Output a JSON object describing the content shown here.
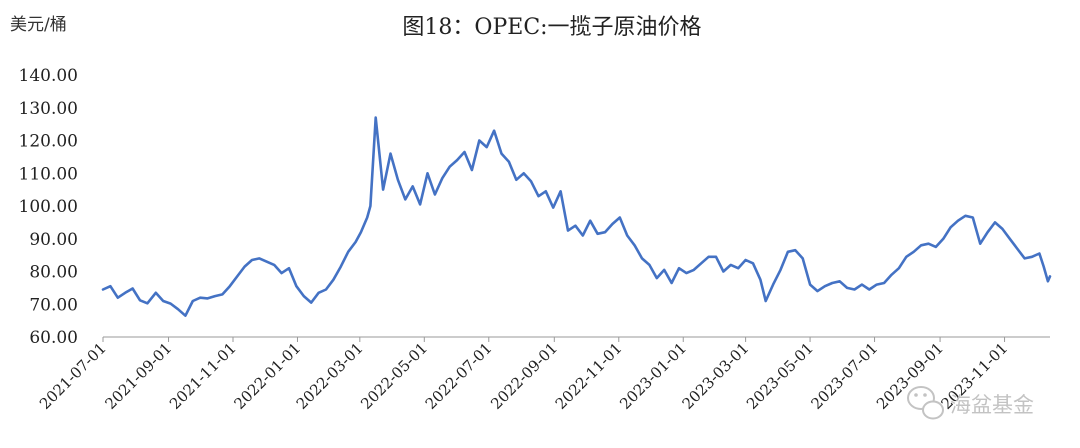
{
  "chart_data": {
    "type": "line",
    "title": "图18：OPEC:一揽子原油价格",
    "ylabel": "美元/桶",
    "xlabel": "",
    "ylim": [
      60,
      140
    ],
    "yticks": [
      "140.00",
      "130.00",
      "120.00",
      "110.00",
      "100.00",
      "90.00",
      "80.00",
      "70.00",
      "60.00"
    ],
    "xticks": [
      "2021-07-01",
      "2021-09-01",
      "2021-11-01",
      "2022-01-01",
      "2022-03-01",
      "2022-05-01",
      "2022-07-01",
      "2022-09-01",
      "2022-11-01",
      "2023-01-01",
      "2023-03-01",
      "2023-05-01",
      "2023-07-01",
      "2023-09-01",
      "2023-11-01"
    ],
    "grid": false,
    "legend": "none",
    "color": "#4472c4",
    "series": [
      {
        "x": [
          "2021-07-01",
          "2021-07-08",
          "2021-07-15",
          "2021-07-22",
          "2021-07-29",
          "2021-08-05",
          "2021-08-12",
          "2021-08-20",
          "2021-08-27",
          "2021-09-03",
          "2021-09-10",
          "2021-09-17",
          "2021-09-24",
          "2021-10-01",
          "2021-10-08",
          "2021-10-15",
          "2021-10-22",
          "2021-10-29",
          "2021-11-05",
          "2021-11-12",
          "2021-11-19",
          "2021-11-26",
          "2021-12-03",
          "2021-12-10",
          "2021-12-17",
          "2021-12-24",
          "2021-12-31",
          "2022-01-07",
          "2022-01-14",
          "2022-01-21",
          "2022-01-28",
          "2022-02-04",
          "2022-02-11",
          "2022-02-18",
          "2022-02-25",
          "2022-03-02",
          "2022-03-08",
          "2022-03-11",
          "2022-03-16",
          "2022-03-23",
          "2022-03-30",
          "2022-04-06",
          "2022-04-13",
          "2022-04-20",
          "2022-04-27",
          "2022-05-04",
          "2022-05-11",
          "2022-05-18",
          "2022-05-25",
          "2022-06-01",
          "2022-06-08",
          "2022-06-15",
          "2022-06-22",
          "2022-06-29",
          "2022-07-06",
          "2022-07-13",
          "2022-07-20",
          "2022-07-27",
          "2022-08-03",
          "2022-08-10",
          "2022-08-17",
          "2022-08-24",
          "2022-08-31",
          "2022-09-07",
          "2022-09-14",
          "2022-09-21",
          "2022-09-28",
          "2022-10-05",
          "2022-10-12",
          "2022-10-19",
          "2022-10-26",
          "2022-11-02",
          "2022-11-09",
          "2022-11-16",
          "2022-11-23",
          "2022-11-30",
          "2022-12-07",
          "2022-12-14",
          "2022-12-21",
          "2022-12-28",
          "2023-01-04",
          "2023-01-11",
          "2023-01-18",
          "2023-01-25",
          "2023-02-01",
          "2023-02-08",
          "2023-02-15",
          "2023-02-22",
          "2023-03-01",
          "2023-03-08",
          "2023-03-15",
          "2023-03-20",
          "2023-03-27",
          "2023-04-03",
          "2023-04-10",
          "2023-04-17",
          "2023-04-24",
          "2023-05-01",
          "2023-05-08",
          "2023-05-15",
          "2023-05-22",
          "2023-05-29",
          "2023-06-05",
          "2023-06-12",
          "2023-06-19",
          "2023-06-26",
          "2023-07-03",
          "2023-07-10",
          "2023-07-17",
          "2023-07-24",
          "2023-07-31",
          "2023-08-07",
          "2023-08-14",
          "2023-08-21",
          "2023-08-28",
          "2023-09-04",
          "2023-09-11",
          "2023-09-18",
          "2023-09-25",
          "2023-10-02",
          "2023-10-09",
          "2023-10-16",
          "2023-10-23",
          "2023-10-30",
          "2023-11-06",
          "2023-11-13",
          "2023-11-20",
          "2023-11-27",
          "2023-12-04",
          "2023-12-08",
          "2023-12-12",
          "2023-12-14"
        ],
        "values": [
          74.5,
          75.5,
          72.0,
          73.5,
          74.8,
          71.2,
          70.3,
          73.5,
          71.0,
          70.2,
          68.5,
          66.5,
          71.0,
          72.0,
          71.8,
          72.5,
          73.0,
          75.5,
          78.5,
          81.5,
          83.5,
          84.0,
          83.0,
          82.0,
          79.5,
          81.0,
          75.5,
          72.5,
          70.5,
          73.5,
          74.5,
          77.5,
          81.5,
          86.0,
          89.0,
          92.0,
          96.5,
          100.0,
          127.0,
          105.0,
          116.0,
          108.0,
          102.0,
          106.0,
          100.5,
          110.0,
          103.5,
          108.5,
          112.0,
          114.0,
          116.5,
          111.0,
          120.0,
          118.0,
          123.0,
          116.0,
          113.5,
          108.0,
          110.0,
          107.5,
          103.0,
          104.5,
          99.5,
          104.5,
          92.5,
          94.0,
          91.0,
          95.5,
          91.5,
          92.0,
          94.5,
          96.5,
          91.0,
          88.0,
          84.0,
          82.0,
          78.0,
          80.5,
          76.5,
          81.0,
          79.5,
          80.5,
          82.5,
          84.5,
          84.5,
          80.0,
          82.0,
          81.0,
          83.5,
          82.5,
          77.5,
          71.0,
          76.0,
          80.5,
          86.0,
          86.5,
          84.0,
          76.0,
          74.0,
          75.5,
          76.5,
          77.0,
          75.0,
          74.5,
          76.0,
          74.5,
          76.0,
          76.5,
          79.0,
          81.0,
          84.5,
          86.0,
          88.0,
          88.5,
          87.5,
          90.0,
          93.5,
          95.5,
          97.0,
          96.5,
          88.5,
          92.0,
          95.0,
          93.0,
          90.0,
          87.0,
          84.0,
          84.5,
          85.5,
          81.5,
          77.0,
          78.5
        ]
      }
    ]
  },
  "watermark": "海盆基金",
  "watermark_icon": "wechat-icon"
}
